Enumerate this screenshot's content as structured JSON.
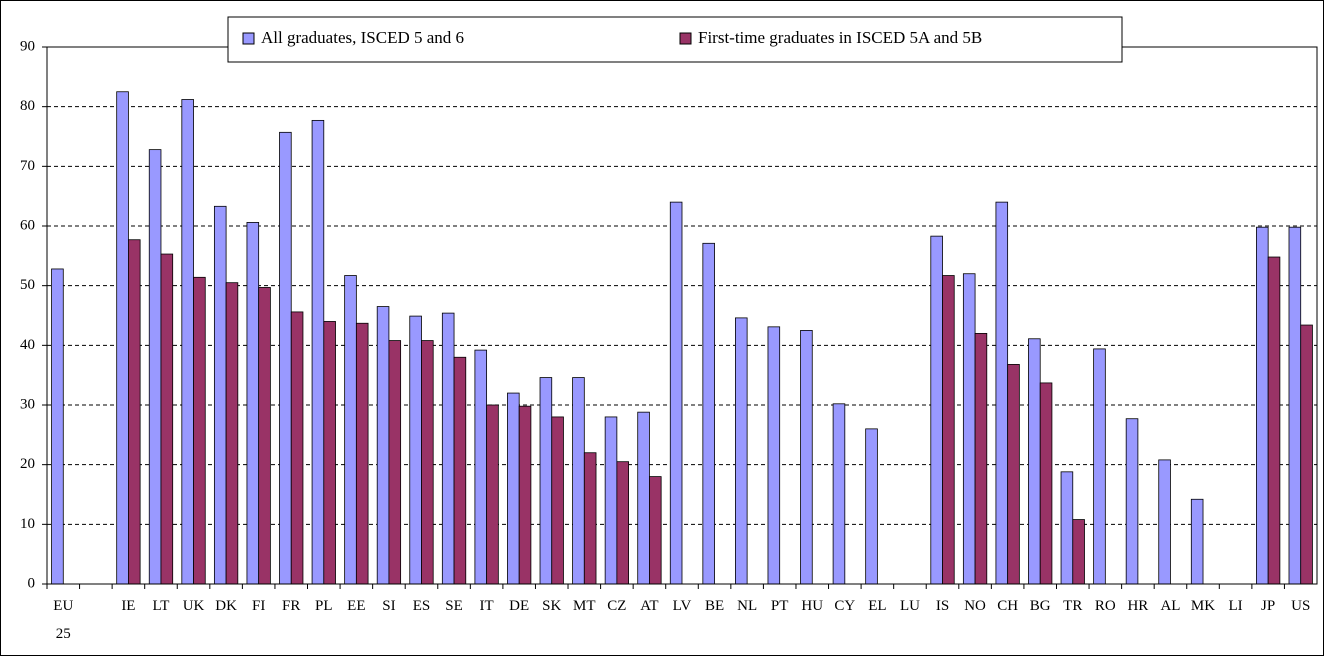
{
  "chart_data": {
    "type": "bar",
    "categories": [
      "EU 25",
      null,
      "IE",
      "LT",
      "UK",
      "DK",
      "FI",
      "FR",
      "PL",
      "EE",
      "SI",
      "ES",
      "SE",
      "IT",
      "DE",
      "SK",
      "MT",
      "CZ",
      "AT",
      "LV",
      "BE",
      "NL",
      "PT",
      "HU",
      "CY",
      "EL",
      "LU",
      "IS",
      "NO",
      "CH",
      "BG",
      "TR",
      "RO",
      "HR",
      "AL",
      "MK",
      "LI",
      "JP",
      "US"
    ],
    "series": [
      {
        "name": "All graduates, ISCED 5 and 6",
        "color": "#9999ff",
        "values": [
          52.8,
          null,
          82.5,
          72.8,
          81.2,
          63.3,
          60.6,
          75.7,
          77.7,
          51.7,
          46.5,
          44.9,
          45.4,
          39.2,
          32,
          34.6,
          34.6,
          28,
          28.8,
          64,
          57.1,
          44.6,
          43.1,
          42.5,
          30.2,
          26,
          null,
          58.3,
          52,
          64,
          41.1,
          18.8,
          39.4,
          27.7,
          20.8,
          14.2,
          null,
          59.8,
          59.8
        ]
      },
      {
        "name": "First-time graduates in ISCED 5A and 5B",
        "color": "#993366",
        "values": [
          null,
          null,
          57.7,
          55.3,
          51.4,
          50.5,
          49.7,
          45.6,
          44,
          43.7,
          40.8,
          40.8,
          38,
          30,
          29.8,
          28,
          22,
          20.5,
          18,
          null,
          null,
          null,
          null,
          null,
          null,
          null,
          null,
          51.7,
          42,
          36.8,
          33.7,
          10.8,
          null,
          null,
          null,
          null,
          null,
          54.8,
          43.4
        ]
      }
    ],
    "ylim": [
      0,
      90
    ],
    "yticks": [
      0,
      10,
      20,
      30,
      40,
      50,
      60,
      70,
      80,
      90
    ],
    "grid": true
  }
}
